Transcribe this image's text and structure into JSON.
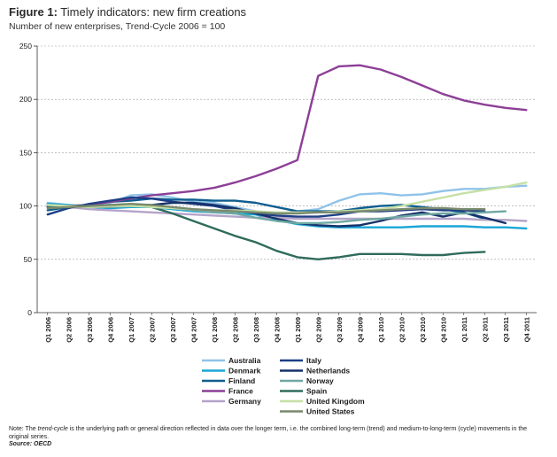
{
  "header": {
    "fig_label": "Figure 1:",
    "title": "Timely indicators: new firm creations",
    "subtitle": "Number of new enterprises, Trend-Cycle 2006 = 100"
  },
  "note": {
    "prefix": "Note: The ",
    "term": "trend-cycle",
    "text": " is the underlying path or general direction reflected in data over the longer term, i.e. the combined long-term (trend) and medium-to-long-term (cycle) movements in the original series.",
    "source": "Source: OECD"
  },
  "chart_data": {
    "type": "line",
    "ylim": [
      0,
      250
    ],
    "yticks": [
      0,
      50,
      100,
      150,
      200,
      250
    ],
    "grid": "dashed-horizontal",
    "legend_position": "bottom-center",
    "categories": [
      "Q1 2006",
      "Q2 2006",
      "Q3 2006",
      "Q4 2006",
      "Q1 2007",
      "Q2 2007",
      "Q3 2007",
      "Q4 2007",
      "Q1 2008",
      "Q2 2008",
      "Q3 2008",
      "Q4 2008",
      "Q1 2009",
      "Q2 2009",
      "Q3 2009",
      "Q4 2009",
      "Q1 2010",
      "Q2 2010",
      "Q3 2010",
      "Q4 2010",
      "Q1 2011",
      "Q2 2011",
      "Q3 2011",
      "Q4 2011"
    ],
    "series": [
      {
        "name": "Australia",
        "color": "#8fc3e8",
        "values": [
          103,
          101,
          100,
          103,
          110,
          111,
          108,
          104,
          103,
          99,
          95,
          93,
          95,
          97,
          105,
          111,
          112,
          110,
          111,
          114,
          116,
          116,
          118,
          119
        ]
      },
      {
        "name": "Denmark",
        "color": "#1aa6d6",
        "values": [
          102,
          101,
          99,
          98,
          99,
          99,
          97,
          95,
          94,
          93,
          92,
          87,
          83,
          81,
          80,
          80,
          80,
          80,
          81,
          81,
          81,
          80,
          80,
          79
        ]
      },
      {
        "name": "Finland",
        "color": "#0e5e8f",
        "values": [
          96,
          99,
          101,
          104,
          105,
          107,
          106,
          106,
          105,
          105,
          103,
          99,
          95,
          95,
          95,
          98,
          100,
          101,
          99,
          97,
          94,
          88,
          null,
          null
        ]
      },
      {
        "name": "France",
        "color": "#8c3f96",
        "values": [
          99,
          100,
          101,
          104,
          107,
          110,
          112,
          114,
          117,
          122,
          128,
          135,
          143,
          222,
          231,
          232,
          228,
          221,
          213,
          205,
          199,
          195,
          192,
          190
        ]
      },
      {
        "name": "Germany",
        "color": "#b4a4c8",
        "values": [
          101,
          99,
          97,
          96,
          95,
          94,
          93,
          92,
          91,
          90,
          89,
          89,
          88,
          88,
          88,
          88,
          88,
          88,
          88,
          88,
          88,
          87,
          87,
          86
        ]
      },
      {
        "name": "Italy",
        "color": "#1f3f86",
        "values": [
          92,
          98,
          102,
          105,
          108,
          107,
          104,
          102,
          100,
          96,
          93,
          91,
          90,
          90,
          92,
          95,
          95,
          96,
          97,
          96,
          96,
          95,
          null,
          null
        ]
      },
      {
        "name": "Netherlands",
        "color": "#16326a",
        "values": [
          99,
          100,
          100,
          100,
          101,
          101,
          103,
          103,
          101,
          98,
          93,
          88,
          84,
          82,
          81,
          82,
          86,
          91,
          94,
          90,
          94,
          89,
          84,
          null
        ]
      },
      {
        "name": "Norway",
        "color": "#6fa8a3",
        "values": [
          101,
          100,
          99,
          99,
          100,
          100,
          98,
          96,
          94,
          93,
          89,
          86,
          84,
          84,
          85,
          87,
          88,
          90,
          92,
          93,
          93,
          94,
          95,
          null
        ]
      },
      {
        "name": "Spain",
        "color": "#2f6b5b",
        "values": [
          100,
          100,
          100,
          101,
          101,
          99,
          93,
          86,
          79,
          72,
          66,
          58,
          52,
          50,
          52,
          55,
          55,
          55,
          54,
          54,
          56,
          57,
          null,
          null
        ]
      },
      {
        "name": "United Kingdom",
        "color": "#c6e0a6",
        "values": [
          101,
          100,
          99,
          100,
          100,
          99,
          98,
          97,
          96,
          96,
          95,
          94,
          94,
          94,
          95,
          96,
          97,
          100,
          104,
          108,
          112,
          115,
          118,
          122
        ]
      },
      {
        "name": "United States",
        "color": "#7a8a6e",
        "values": [
          98,
          99,
          100,
          101,
          102,
          101,
          99,
          97,
          96,
          95,
          94,
          93,
          93,
          94,
          94,
          95,
          96,
          97,
          98,
          98,
          97,
          97,
          null,
          null
        ]
      }
    ]
  }
}
